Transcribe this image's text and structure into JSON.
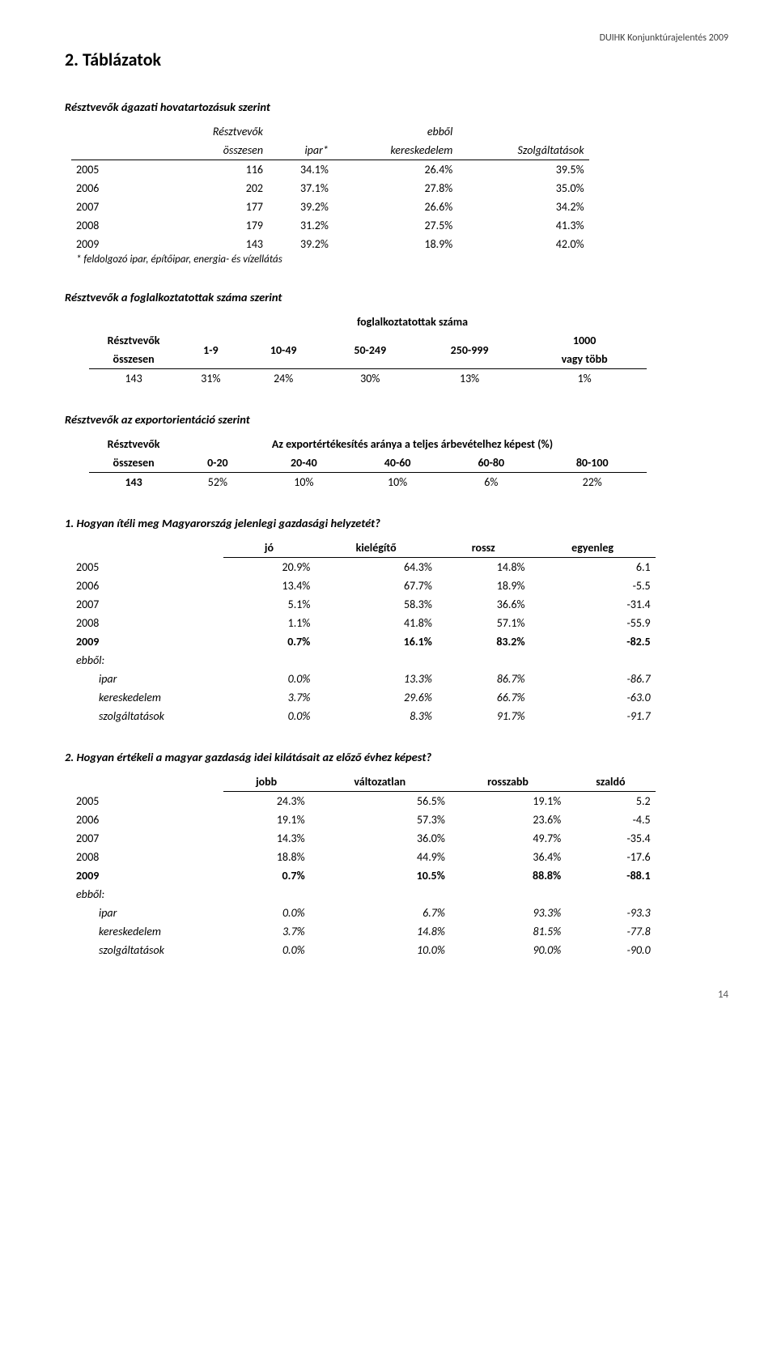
{
  "header": {
    "docTitle": "DUIHK Konjunktúrajelentés 2009"
  },
  "pageTitle": "2. Táblázatok",
  "pageNumber": "14",
  "section1": {
    "title": "Résztvevők ágazati hovatartozásuk szerint",
    "head": {
      "c0": "",
      "c1": "Résztvevők\nösszesen",
      "c2": "ipar*",
      "c3": "ebből\nkereskedelem",
      "c4": "Szolgáltatások"
    },
    "h1": {
      "c1": "Résztvevők",
      "c3": "ebből"
    },
    "h2": {
      "c1": "összesen",
      "c2": "ipar*",
      "c3": "kereskedelem",
      "c4": "Szolgáltatások"
    },
    "rows": [
      {
        "y": "2005",
        "v": [
          "116",
          "34.1%",
          "26.4%",
          "39.5%"
        ]
      },
      {
        "y": "2006",
        "v": [
          "202",
          "37.1%",
          "27.8%",
          "35.0%"
        ]
      },
      {
        "y": "2007",
        "v": [
          "177",
          "39.2%",
          "26.6%",
          "34.2%"
        ]
      },
      {
        "y": "2008",
        "v": [
          "179",
          "31.2%",
          "27.5%",
          "41.3%"
        ]
      },
      {
        "y": "2009",
        "v": [
          "143",
          "39.2%",
          "18.9%",
          "42.0%"
        ]
      }
    ],
    "footnote": "* feldolgozó ipar, építőipar, energia- és vízellátás"
  },
  "section2": {
    "title": "Résztvevők a foglalkoztatottak száma szerint",
    "h1": {
      "span": "foglalkoztatottak száma"
    },
    "h2": {
      "c0": "Résztvevők",
      "c1": "1-9",
      "c2": "10-49",
      "c3": "50-249",
      "c4": "250-999",
      "c5": "1000"
    },
    "h2b": {
      "c0": "összesen",
      "c5": "vagy több"
    },
    "row": {
      "c0": "143",
      "v": [
        "31%",
        "24%",
        "30%",
        "13%",
        "1%"
      ]
    }
  },
  "section3": {
    "title": "Résztvevők az exportorientáció szerint",
    "h1": {
      "c0": "Résztvevők",
      "span": "Az exportértékesítés aránya a teljes árbevételhez képest (%)"
    },
    "h2": {
      "c0": "összesen",
      "c1": "0-20",
      "c2": "20-40",
      "c3": "40-60",
      "c4": "60-80",
      "c5": "80-100"
    },
    "row": {
      "c0": "143",
      "v": [
        "52%",
        "10%",
        "10%",
        "6%",
        "22%"
      ]
    }
  },
  "q1": {
    "title": "1. Hogyan ítéli meg Magyarország jelenlegi gazdasági helyzetét?",
    "head": [
      "jó",
      "kielégítő",
      "rossz",
      "egyenleg"
    ],
    "rows": [
      {
        "y": "2005",
        "v": [
          "20.9%",
          "64.3%",
          "14.8%",
          "6.1"
        ],
        "bold": false
      },
      {
        "y": "2006",
        "v": [
          "13.4%",
          "67.7%",
          "18.9%",
          "-5.5"
        ],
        "bold": false
      },
      {
        "y": "2007",
        "v": [
          "5.1%",
          "58.3%",
          "36.6%",
          "-31.4"
        ],
        "bold": false
      },
      {
        "y": "2008",
        "v": [
          "1.1%",
          "41.8%",
          "57.1%",
          "-55.9"
        ],
        "bold": false
      },
      {
        "y": "2009",
        "v": [
          "0.7%",
          "16.1%",
          "83.2%",
          "-82.5"
        ],
        "bold": true
      }
    ],
    "ebbolLabel": "ebből:",
    "ebbol": [
      {
        "y": "ipar",
        "v": [
          "0.0%",
          "13.3%",
          "86.7%",
          "-86.7"
        ]
      },
      {
        "y": "kereskedelem",
        "v": [
          "3.7%",
          "29.6%",
          "66.7%",
          "-63.0"
        ]
      },
      {
        "y": "szolgáltatások",
        "v": [
          "0.0%",
          "8.3%",
          "91.7%",
          "-91.7"
        ]
      }
    ]
  },
  "q2": {
    "title": "2. Hogyan értékeli a magyar gazdaság idei kilátásait az előző évhez képest?",
    "head": [
      "jobb",
      "változatlan",
      "rosszabb",
      "szaldó"
    ],
    "rows": [
      {
        "y": "2005",
        "v": [
          "24.3%",
          "56.5%",
          "19.1%",
          "5.2"
        ],
        "bold": false
      },
      {
        "y": "2006",
        "v": [
          "19.1%",
          "57.3%",
          "23.6%",
          "-4.5"
        ],
        "bold": false
      },
      {
        "y": "2007",
        "v": [
          "14.3%",
          "36.0%",
          "49.7%",
          "-35.4"
        ],
        "bold": false
      },
      {
        "y": "2008",
        "v": [
          "18.8%",
          "44.9%",
          "36.4%",
          "-17.6"
        ],
        "bold": false
      },
      {
        "y": "2009",
        "v": [
          "0.7%",
          "10.5%",
          "88.8%",
          "-88.1"
        ],
        "bold": true
      }
    ],
    "ebbolLabel": "ebből:",
    "ebbol": [
      {
        "y": "ipar",
        "v": [
          "0.0%",
          "6.7%",
          "93.3%",
          "-93.3"
        ]
      },
      {
        "y": "kereskedelem",
        "v": [
          "3.7%",
          "14.8%",
          "81.5%",
          "-77.8"
        ]
      },
      {
        "y": "szolgáltatások",
        "v": [
          "0.0%",
          "10.0%",
          "90.0%",
          "-90.0"
        ]
      }
    ]
  }
}
